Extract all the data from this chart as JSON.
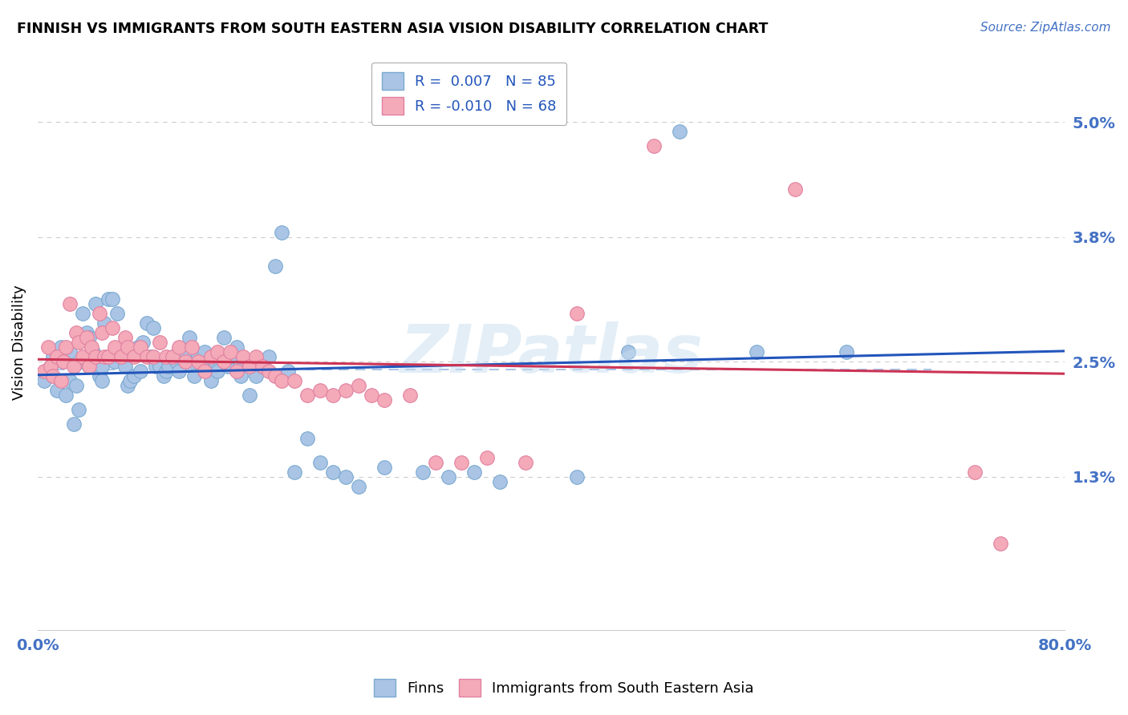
{
  "title": "FINNISH VS IMMIGRANTS FROM SOUTH EASTERN ASIA VISION DISABILITY CORRELATION CHART",
  "source": "Source: ZipAtlas.com",
  "ylabel": "Vision Disability",
  "yticks": [
    0.0,
    0.013,
    0.025,
    0.038,
    0.05
  ],
  "ytick_labels": [
    "",
    "1.3%",
    "2.5%",
    "3.8%",
    "5.0%"
  ],
  "xlim": [
    0.0,
    0.8
  ],
  "ylim": [
    -0.003,
    0.057
  ],
  "legend_label_finns": "Finns",
  "legend_label_immigrants": "Immigrants from South Eastern Asia",
  "finns_color": "#aac4e5",
  "immigrants_color": "#f4aab8",
  "finns_edge_color": "#7aaad0",
  "immigrants_edge_color": "#e080a0",
  "finns_trend_color": "#2255bb",
  "immigrants_trend_color": "#cc3355",
  "dashed_line_color": "#aac4e5",
  "dashed_line_y": 0.0242,
  "background_color": "#ffffff",
  "grid_color": "#cccccc",
  "axis_label_color": "#4472c4",
  "watermark": "ZIPatlas",
  "finns_x": [
    0.005,
    0.01,
    0.012,
    0.015,
    0.018,
    0.02,
    0.022,
    0.025,
    0.025,
    0.028,
    0.03,
    0.032,
    0.035,
    0.035,
    0.038,
    0.04,
    0.04,
    0.043,
    0.045,
    0.048,
    0.05,
    0.05,
    0.052,
    0.055,
    0.058,
    0.06,
    0.062,
    0.065,
    0.068,
    0.07,
    0.072,
    0.075,
    0.078,
    0.08,
    0.082,
    0.085,
    0.088,
    0.09,
    0.092,
    0.095,
    0.098,
    0.1,
    0.102,
    0.105,
    0.108,
    0.11,
    0.115,
    0.118,
    0.12,
    0.122,
    0.125,
    0.128,
    0.13,
    0.135,
    0.138,
    0.14,
    0.145,
    0.148,
    0.15,
    0.155,
    0.158,
    0.16,
    0.165,
    0.17,
    0.175,
    0.18,
    0.185,
    0.19,
    0.195,
    0.2,
    0.21,
    0.22,
    0.23,
    0.24,
    0.25,
    0.27,
    0.3,
    0.32,
    0.34,
    0.36,
    0.42,
    0.46,
    0.5,
    0.56,
    0.63
  ],
  "finns_y": [
    0.023,
    0.0245,
    0.0255,
    0.022,
    0.0265,
    0.025,
    0.0215,
    0.026,
    0.023,
    0.0185,
    0.0225,
    0.02,
    0.03,
    0.025,
    0.028,
    0.0275,
    0.0245,
    0.026,
    0.031,
    0.0235,
    0.023,
    0.0245,
    0.029,
    0.0315,
    0.0315,
    0.025,
    0.03,
    0.026,
    0.0245,
    0.0225,
    0.023,
    0.0235,
    0.0265,
    0.024,
    0.027,
    0.029,
    0.0255,
    0.0285,
    0.0245,
    0.0245,
    0.0235,
    0.024,
    0.0245,
    0.0255,
    0.025,
    0.024,
    0.026,
    0.0275,
    0.0245,
    0.0235,
    0.0255,
    0.025,
    0.026,
    0.023,
    0.025,
    0.024,
    0.0275,
    0.0245,
    0.0255,
    0.0265,
    0.0235,
    0.025,
    0.0215,
    0.0235,
    0.0245,
    0.0255,
    0.035,
    0.0385,
    0.024,
    0.0135,
    0.017,
    0.0145,
    0.0135,
    0.013,
    0.012,
    0.014,
    0.0135,
    0.013,
    0.0135,
    0.0125,
    0.013,
    0.026,
    0.049,
    0.026,
    0.026
  ],
  "immigrants_x": [
    0.005,
    0.008,
    0.01,
    0.012,
    0.015,
    0.018,
    0.02,
    0.022,
    0.025,
    0.028,
    0.03,
    0.032,
    0.035,
    0.038,
    0.04,
    0.042,
    0.045,
    0.048,
    0.05,
    0.052,
    0.055,
    0.058,
    0.06,
    0.065,
    0.068,
    0.07,
    0.075,
    0.08,
    0.085,
    0.09,
    0.095,
    0.1,
    0.105,
    0.11,
    0.115,
    0.12,
    0.125,
    0.13,
    0.135,
    0.14,
    0.145,
    0.15,
    0.155,
    0.16,
    0.165,
    0.17,
    0.175,
    0.18,
    0.185,
    0.19,
    0.2,
    0.21,
    0.22,
    0.23,
    0.24,
    0.25,
    0.26,
    0.27,
    0.29,
    0.31,
    0.33,
    0.35,
    0.38,
    0.42,
    0.48,
    0.59,
    0.73,
    0.75
  ],
  "immigrants_y": [
    0.024,
    0.0265,
    0.0245,
    0.0235,
    0.0255,
    0.023,
    0.025,
    0.0265,
    0.031,
    0.0245,
    0.028,
    0.027,
    0.0255,
    0.0275,
    0.0245,
    0.0265,
    0.0255,
    0.03,
    0.028,
    0.0255,
    0.0255,
    0.0285,
    0.0265,
    0.0255,
    0.0275,
    0.0265,
    0.0255,
    0.0265,
    0.0255,
    0.0255,
    0.027,
    0.0255,
    0.0255,
    0.0265,
    0.025,
    0.0265,
    0.025,
    0.024,
    0.0255,
    0.026,
    0.025,
    0.026,
    0.024,
    0.0255,
    0.0245,
    0.0255,
    0.0245,
    0.024,
    0.0235,
    0.023,
    0.023,
    0.0215,
    0.022,
    0.0215,
    0.022,
    0.0225,
    0.0215,
    0.021,
    0.0215,
    0.0145,
    0.0145,
    0.015,
    0.0145,
    0.03,
    0.0475,
    0.043,
    0.0135,
    0.006
  ]
}
